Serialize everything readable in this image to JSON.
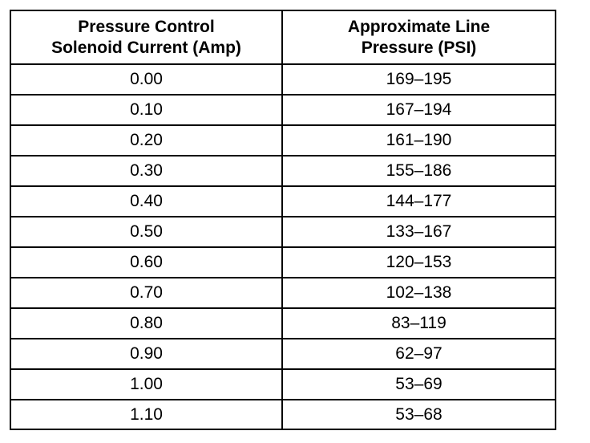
{
  "table": {
    "header": [
      "Pressure Control\nSolenoid Current (Amp)",
      "Approximate Line\nPressure (PSI)"
    ],
    "rows": [
      [
        "0.00",
        "169–195"
      ],
      [
        "0.10",
        "167–194"
      ],
      [
        "0.20",
        "161–190"
      ],
      [
        "0.30",
        "155–186"
      ],
      [
        "0.40",
        "144–177"
      ],
      [
        "0.50",
        "133–167"
      ],
      [
        "0.60",
        "120–153"
      ],
      [
        "0.70",
        "102–138"
      ],
      [
        "0.80",
        "83–119"
      ],
      [
        "0.90",
        "62–97"
      ],
      [
        "1.00",
        "53–69"
      ],
      [
        "1.10",
        "53–68"
      ]
    ]
  }
}
